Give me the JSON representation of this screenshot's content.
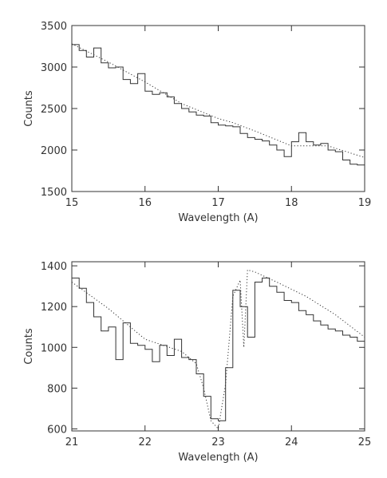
{
  "chart_data": [
    {
      "type": "line",
      "xlabel": "Wavelength (A)",
      "ylabel": "Counts",
      "xlim": [
        15,
        19
      ],
      "ylim": [
        1500,
        3500
      ],
      "xticks": [
        15,
        16,
        17,
        18,
        19
      ],
      "yticks": [
        1500,
        2000,
        2500,
        3000,
        3500
      ],
      "series": [
        {
          "style": "histogram",
          "x": [
            15.0,
            15.1,
            15.2,
            15.3,
            15.4,
            15.5,
            15.6,
            15.7,
            15.8,
            15.9,
            16.0,
            16.1,
            16.2,
            16.3,
            16.4,
            16.5,
            16.6,
            16.7,
            16.8,
            16.9,
            17.0,
            17.1,
            17.2,
            17.3,
            17.4,
            17.5,
            17.6,
            17.7,
            17.8,
            17.9,
            18.0,
            18.1,
            18.2,
            18.3,
            18.4,
            18.5,
            18.6,
            18.7,
            18.8,
            18.9,
            19.0
          ],
          "y": [
            3270,
            3200,
            3120,
            3230,
            3050,
            2990,
            3000,
            2850,
            2800,
            2920,
            2710,
            2670,
            2690,
            2640,
            2560,
            2500,
            2460,
            2420,
            2410,
            2330,
            2300,
            2290,
            2280,
            2200,
            2150,
            2130,
            2110,
            2060,
            2000,
            1920,
            2100,
            2210,
            2100,
            2060,
            2080,
            2000,
            1980,
            1880,
            1830,
            1820,
            1760
          ]
        },
        {
          "style": "dotted-model",
          "x": [
            15.0,
            15.5,
            16.0,
            16.5,
            17.0,
            17.2,
            17.5,
            18.0,
            18.5,
            19.0
          ],
          "y": [
            3280,
            3060,
            2820,
            2560,
            2380,
            2330,
            2230,
            2050,
            2050,
            1910
          ]
        }
      ]
    },
    {
      "type": "line",
      "xlabel": "Wavelength (A)",
      "ylabel": "Counts",
      "xlim": [
        21,
        25
      ],
      "ylim": [
        590,
        1420
      ],
      "xticks": [
        21,
        22,
        23,
        24,
        25
      ],
      "yticks": [
        600,
        800,
        1000,
        1200,
        1400
      ],
      "series": [
        {
          "style": "histogram",
          "x": [
            21.0,
            21.1,
            21.2,
            21.3,
            21.4,
            21.5,
            21.6,
            21.7,
            21.8,
            21.9,
            22.0,
            22.1,
            22.2,
            22.3,
            22.4,
            22.5,
            22.6,
            22.7,
            22.8,
            22.9,
            23.0,
            23.1,
            23.2,
            23.3,
            23.4,
            23.5,
            23.6,
            23.7,
            23.8,
            23.9,
            24.0,
            24.1,
            24.2,
            24.3,
            24.4,
            24.5,
            24.6,
            24.7,
            24.8,
            24.9,
            25.0
          ],
          "y": [
            1340,
            1290,
            1220,
            1150,
            1080,
            1100,
            940,
            1120,
            1020,
            1010,
            990,
            930,
            1010,
            960,
            1040,
            950,
            940,
            870,
            760,
            650,
            640,
            900,
            1280,
            1200,
            1050,
            1320,
            1340,
            1300,
            1270,
            1230,
            1220,
            1180,
            1160,
            1130,
            1110,
            1090,
            1080,
            1060,
            1050,
            1030,
            1010
          ]
        },
        {
          "style": "dotted-model",
          "x": [
            21.0,
            21.5,
            22.0,
            22.5,
            22.7,
            22.8,
            22.9,
            23.0,
            23.1,
            23.2,
            23.3,
            23.35,
            23.4,
            23.5,
            23.8,
            24.2,
            24.6,
            25.0
          ],
          "y": [
            1320,
            1190,
            1040,
            980,
            920,
            800,
            640,
            600,
            820,
            1250,
            1330,
            1000,
            1380,
            1370,
            1320,
            1250,
            1160,
            1050
          ]
        }
      ]
    }
  ]
}
